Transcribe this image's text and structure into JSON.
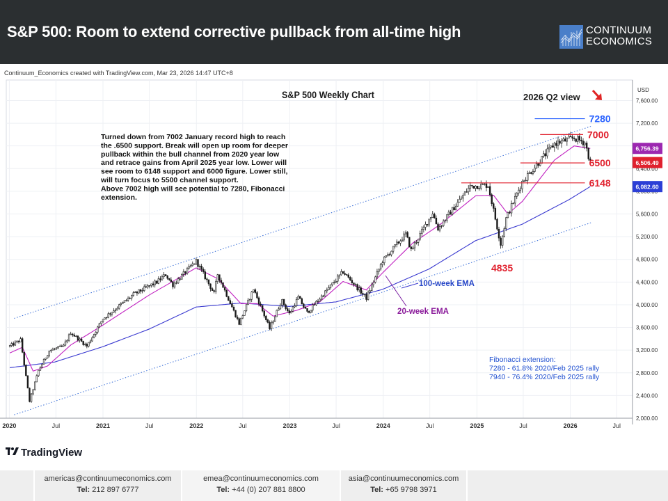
{
  "header": {
    "title": "S&P 500: Room to extend corrective pullback from all-time high",
    "brand_line1": "CONTINUUM",
    "brand_line2": "ECONOMICS"
  },
  "credit": "Continuum_Economics created with TradingView.com, Mar 23, 2026 14:47 UTC+8",
  "tradingview_label": "TradingView",
  "footer": {
    "boxes": [
      {
        "email": "americas@continuumeconomics.com",
        "tel_label": "Tel:",
        "tel": "212 897 6777"
      },
      {
        "email": "emea@continuumeconomics.com",
        "tel_label": "Tel:",
        "tel": "+44 (0) 207 881 8800"
      },
      {
        "email": "asia@continuumeconomics.com",
        "tel_label": "Tel:",
        "tel": "+65 9798 3971"
      }
    ]
  },
  "chart_data": {
    "type": "candlestick",
    "title": "S&P 500 Weekly Chart",
    "view_label": "2026 Q2 view",
    "currency": "USD",
    "ylim": [
      2000,
      7900
    ],
    "x_range": [
      "2019-12-20",
      "2026-09-01"
    ],
    "y_ticks": [
      2000,
      2400,
      2800,
      3200,
      3600,
      4000,
      4400,
      4800,
      5200,
      5600,
      6000,
      6400,
      6800,
      7200,
      7600
    ],
    "y_tick_labels": [
      "2,000.00",
      "2,400.00",
      "2,800.00",
      "3,200.00",
      "3,600.00",
      "4,000.00",
      "4,400.00",
      "4,800.00",
      "5,200.00",
      "5,600.00",
      "6,000.00",
      "6,400.00",
      "6,800.00",
      "7,200.00",
      "7,600.00"
    ],
    "x_ticks": [
      {
        "label": "2020",
        "date": "2020-01-01"
      },
      {
        "label": "Jul",
        "date": "2020-07-01"
      },
      {
        "label": "2021",
        "date": "2021-01-01"
      },
      {
        "label": "Jul",
        "date": "2021-07-01"
      },
      {
        "label": "2022",
        "date": "2022-01-01"
      },
      {
        "label": "Jul",
        "date": "2022-07-01"
      },
      {
        "label": "2023",
        "date": "2023-01-01"
      },
      {
        "label": "Jul",
        "date": "2023-07-01"
      },
      {
        "label": "2024",
        "date": "2024-01-01"
      },
      {
        "label": "Jul",
        "date": "2024-07-01"
      },
      {
        "label": "2025",
        "date": "2025-01-01"
      },
      {
        "label": "Jul",
        "date": "2025-07-01"
      },
      {
        "label": "2026",
        "date": "2026-01-01"
      },
      {
        "label": "Jul",
        "date": "2026-07-01"
      }
    ],
    "close_anchors": [
      [
        "2020-01-03",
        3270
      ],
      [
        "2020-02-14",
        3380
      ],
      [
        "2020-03-20",
        2300
      ],
      [
        "2020-04-24",
        2840
      ],
      [
        "2020-06-05",
        3190
      ],
      [
        "2020-07-31",
        3270
      ],
      [
        "2020-08-28",
        3510
      ],
      [
        "2020-10-30",
        3270
      ],
      [
        "2020-12-31",
        3750
      ],
      [
        "2021-04-30",
        4180
      ],
      [
        "2021-07-30",
        4400
      ],
      [
        "2021-09-03",
        4530
      ],
      [
        "2021-10-01",
        4350
      ],
      [
        "2021-12-31",
        4770
      ],
      [
        "2022-03-11",
        4200
      ],
      [
        "2022-03-25",
        4540
      ],
      [
        "2022-06-17",
        3670
      ],
      [
        "2022-08-12",
        4280
      ],
      [
        "2022-10-14",
        3580
      ],
      [
        "2022-11-30",
        4080
      ],
      [
        "2022-12-30",
        3840
      ],
      [
        "2023-02-03",
        4130
      ],
      [
        "2023-03-10",
        3860
      ],
      [
        "2023-07-28",
        4580
      ],
      [
        "2023-10-27",
        4120
      ],
      [
        "2023-12-29",
        4770
      ],
      [
        "2024-03-29",
        5250
      ],
      [
        "2024-04-19",
        4960
      ],
      [
        "2024-07-12",
        5620
      ],
      [
        "2024-08-02",
        5340
      ],
      [
        "2024-12-06",
        6090
      ],
      [
        "2025-02-14",
        6110
      ],
      [
        "2025-04-04",
        5070
      ],
      [
        "2025-04-25",
        5520
      ],
      [
        "2025-06-27",
        6170
      ],
      [
        "2025-10-31",
        6840
      ],
      [
        "2026-01-16",
        6940
      ],
      [
        "2026-02-27",
        6860
      ],
      [
        "2026-03-20",
        6506
      ]
    ],
    "ema20_anchors": [
      [
        "2020-01-03",
        3150
      ],
      [
        "2020-02-21",
        3250
      ],
      [
        "2020-04-03",
        2830
      ],
      [
        "2020-05-29",
        2920
      ],
      [
        "2020-08-28",
        3290
      ],
      [
        "2020-12-31",
        3640
      ],
      [
        "2021-06-30",
        4170
      ],
      [
        "2021-12-31",
        4650
      ],
      [
        "2022-03-25",
        4460
      ],
      [
        "2022-06-24",
        4020
      ],
      [
        "2022-08-26",
        4020
      ],
      [
        "2022-10-28",
        3800
      ],
      [
        "2023-01-27",
        3900
      ],
      [
        "2023-04-28",
        4050
      ],
      [
        "2023-07-28",
        4410
      ],
      [
        "2023-10-27",
        4260
      ],
      [
        "2023-12-29",
        4560
      ],
      [
        "2024-04-26",
        5090
      ],
      [
        "2024-08-09",
        5410
      ],
      [
        "2024-12-27",
        5920
      ],
      [
        "2025-03-07",
        5930
      ],
      [
        "2025-05-02",
        5600
      ],
      [
        "2025-06-27",
        5820
      ],
      [
        "2025-10-31",
        6550
      ],
      [
        "2026-01-16",
        6800
      ],
      [
        "2026-03-20",
        6756
      ]
    ],
    "ema100_anchors": [
      [
        "2020-01-03",
        2890
      ],
      [
        "2020-06-26",
        2990
      ],
      [
        "2020-12-31",
        3260
      ],
      [
        "2021-06-30",
        3570
      ],
      [
        "2021-12-31",
        3960
      ],
      [
        "2022-06-24",
        4030
      ],
      [
        "2022-12-30",
        3970
      ],
      [
        "2023-06-30",
        4050
      ],
      [
        "2023-12-29",
        4270
      ],
      [
        "2024-06-28",
        4630
      ],
      [
        "2024-12-27",
        5130
      ],
      [
        "2025-06-27",
        5420
      ],
      [
        "2025-12-26",
        5850
      ],
      [
        "2026-03-20",
        6083
      ]
    ],
    "upper_channel": [
      [
        "2020-03-20",
        3850
      ],
      [
        "2026-02-20",
        7100
      ]
    ],
    "lower_channel": [
      [
        "2020-03-20",
        2150
      ],
      [
        "2026-02-20",
        5400
      ]
    ],
    "levels": [
      {
        "value": 7280,
        "label": "7280",
        "color": "#2962ff",
        "from": "2025-08-15",
        "to": "2026-02-27"
      },
      {
        "value": 7000,
        "label": "7000",
        "color": "#e0212e",
        "from": "2025-09-05",
        "to": "2026-02-20"
      },
      {
        "value": 6500,
        "label": "6500",
        "color": "#e0212e",
        "from": "2025-06-20",
        "to": "2026-02-27"
      },
      {
        "value": 6148,
        "label": "6148",
        "color": "#e0212e",
        "from": "2024-11-01",
        "to": "2026-02-27"
      }
    ],
    "price_tags": [
      {
        "value": 6756.39,
        "label": "6,756.39",
        "color": "#9c27b0"
      },
      {
        "value": 6506.49,
        "label": "6,506.49",
        "color": "#e0212e"
      },
      {
        "value": 6082.6,
        "label": "6,082.60",
        "color": "#2c3fd6"
      }
    ],
    "annotations": {
      "commentary": [
        "Turned down from 7002 January record high to reach",
        "the .6500 support. Break will open up room for deeper",
        "pullback within the bull channel from 2020 year low",
        "and retrace gains from April 2025 year low. Lower will",
        "see room to 6148 support and 6000 figure. Lower still,",
        "will turn focus to 5500 channel support.",
        "Above 7002 high will see potential to 7280, Fibonacci",
        "extension."
      ],
      "low_label": "4835",
      "ema100_label": "100-week EMA",
      "ema20_label": "20-week EMA",
      "fibonacci": [
        "Fibonacci extension:",
        "7280 - 61.8% 2020/Feb 2025 rally",
        "7940 - 76.4% 2020/Feb 2025 rally"
      ]
    },
    "colors": {
      "up": "#1a1a1a",
      "down": "#1a1a1a",
      "up_fill": "#ffffff",
      "down_fill": "#1a1a1a",
      "ema20": "#c020c0",
      "ema100": "#3a3ad0",
      "channel": "#3a6fd8",
      "grid": "#eef0f4"
    }
  }
}
